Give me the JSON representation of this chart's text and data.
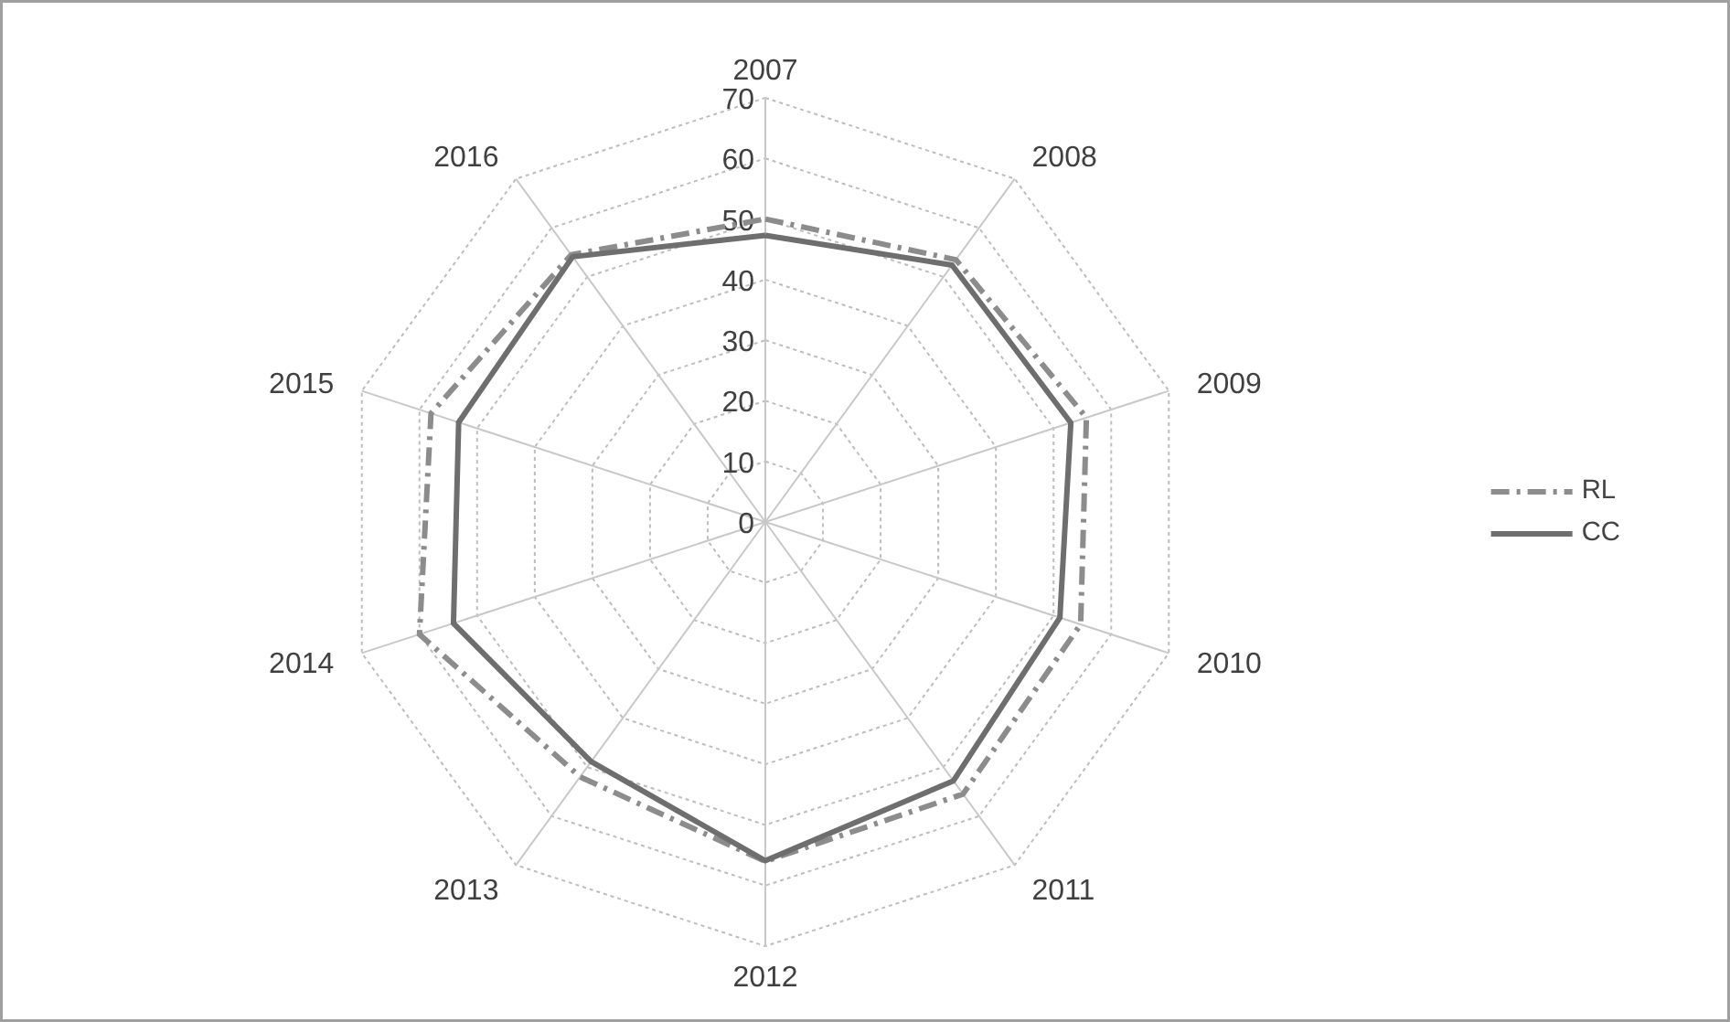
{
  "chart_data": {
    "type": "radar",
    "categories": [
      "2007",
      "2008",
      "2009",
      "2010",
      "2011",
      "2012",
      "2013",
      "2014",
      "2015",
      "2016"
    ],
    "series": [
      {
        "name": "RL",
        "color": "#8c8c8c",
        "line_style": "dashed",
        "values": [
          50,
          53.5,
          55.7,
          54.7,
          55.5,
          56,
          52,
          60,
          58,
          54.5
        ]
      },
      {
        "name": "CC",
        "color": "#6e6e6e",
        "line_style": "solid",
        "values": [
          47.3,
          52.4,
          53,
          51.1,
          52.8,
          55.9,
          48.9,
          54.1,
          53.2,
          54.1
        ]
      }
    ],
    "ylim": [
      0,
      70
    ],
    "yticks": [
      0,
      10,
      20,
      30,
      40,
      50,
      60,
      70
    ],
    "grid": true,
    "legend": "right"
  }
}
